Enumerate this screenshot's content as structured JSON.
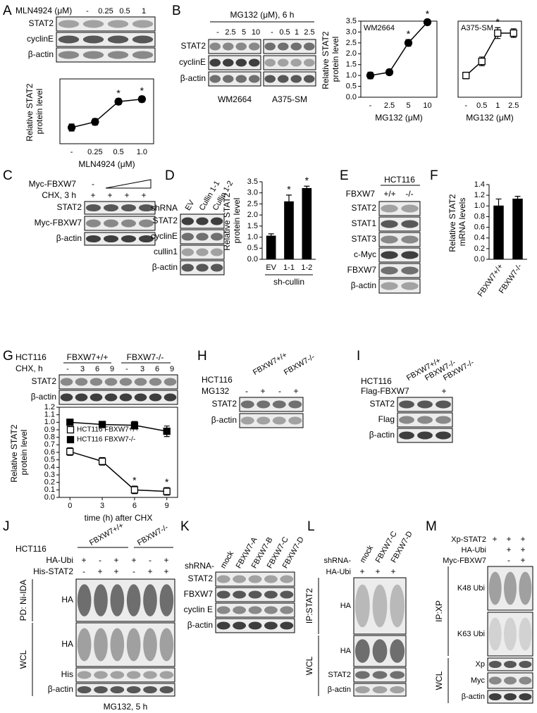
{
  "chart_data": [
    {
      "type": "line",
      "categories": [
        "-",
        "0.25",
        "0.5",
        "1.0"
      ],
      "values": [
        1.0,
        1.35,
        2.6,
        2.75
      ],
      "errors": [
        0.22,
        0.2,
        0.18,
        0.18
      ],
      "ylim": [
        0,
        4
      ],
      "y_label": "Relative STAT2 protein level",
      "x_label": "MLN4924 (μM)",
      "color": "#000000",
      "marker": "circle",
      "annotations": [
        {
          "text": "*",
          "x": "0.5"
        },
        {
          "text": "*",
          "x": "1.0"
        }
      ]
    },
    {
      "type": "line",
      "title": "WM2664",
      "categories": [
        "-",
        "2.5",
        "5",
        "10"
      ],
      "values": [
        1.0,
        1.15,
        2.5,
        3.45
      ],
      "errors": [
        0.15,
        0.12,
        0.15,
        0.12
      ],
      "ylim": [
        0,
        3.5
      ],
      "yticks": [
        {
          "value": 0,
          "label": "0.0"
        },
        0.5,
        {
          "value": 1,
          "label": "1.0"
        },
        1.5,
        {
          "value": 2,
          "label": "2.0"
        },
        2.5,
        {
          "value": 3,
          "label": "3.0"
        },
        3.5
      ],
      "y_label": "Relative STAT2 protein level",
      "x_label": "MG132 (μM)",
      "color": "#000000",
      "marker": "circle",
      "annotations": [
        {
          "text": "*",
          "x": "5"
        },
        {
          "text": "*",
          "x": "10"
        }
      ]
    },
    {
      "type": "line",
      "title": "A375-SM",
      "categories": [
        "-",
        "0.5",
        "1",
        "2.5"
      ],
      "values": [
        1.0,
        1.65,
        2.95,
        2.95
      ],
      "errors": [
        0.15,
        0.2,
        0.25,
        0.2
      ],
      "ylim": [
        0,
        3.5
      ],
      "x_label": "MG132 (μM)",
      "color": "#ffffff",
      "marker": "square",
      "annotations": [
        {
          "text": "*",
          "x": "1"
        }
      ]
    },
    {
      "type": "bar",
      "categories": [
        "EV",
        "1-1",
        "1-2"
      ],
      "values": [
        1.05,
        2.6,
        3.2
      ],
      "errors": [
        0.1,
        0.3,
        0.1
      ],
      "ylim": [
        0,
        3.5
      ],
      "yticks": [
        {
          "value": 0,
          "label": "0.0"
        },
        0.5,
        {
          "value": 1,
          "label": "1.0"
        },
        1.5,
        {
          "value": 2,
          "label": "2.0"
        },
        2.5,
        {
          "value": 3,
          "label": "3.0"
        },
        3.5
      ],
      "y_label": "Relative STAT2 protein level",
      "group_label": "sh-cullin",
      "color": "#000000",
      "annotations": [
        {
          "text": "*",
          "x": "1-1"
        },
        {
          "text": "*",
          "x": "1-2"
        }
      ]
    },
    {
      "type": "bar",
      "categories": [
        "FBXW7+/+",
        "FBXW7-/-"
      ],
      "values": [
        1.0,
        1.13
      ],
      "errors": [
        0.13,
        0.05
      ],
      "ylim": [
        0,
        1.4
      ],
      "yticks": [
        {
          "value": 0,
          "label": "0.0"
        },
        0.2,
        0.4,
        0.6,
        0.8,
        {
          "value": 1,
          "label": "1.0"
        },
        1.2,
        1.4
      ],
      "y_label": "Relative STAT2 mRNA levels",
      "color": "#000000"
    },
    {
      "type": "line",
      "x": [
        0,
        3,
        6,
        9
      ],
      "xlim": [
        -1,
        10
      ],
      "xticks": [
        0,
        3,
        6,
        9
      ],
      "ylim": [
        0,
        1.2
      ],
      "yticks": [
        {
          "value": 0,
          "label": "0.0"
        },
        0.1,
        0.2,
        0.3,
        0.4,
        0.5,
        0.6,
        0.7,
        0.8,
        0.9,
        {
          "value": 1,
          "label": "1.0"
        },
        1.1,
        1.2
      ],
      "x_label": "time (h) after CHX",
      "y_label": "Relative STAT2 protein level",
      "legend": "center-left",
      "series": [
        {
          "name": "HCT116 FBXW7+/+",
          "color": "#ffffff",
          "marker": "square",
          "values": [
            0.61,
            0.48,
            0.1,
            0.08
          ],
          "errors": [
            0.05,
            0.05,
            0.05,
            0.05
          ]
        },
        {
          "name": "HCT116 FBXW7-/-",
          "color": "#000000",
          "marker": "square",
          "values": [
            1.0,
            0.97,
            0.96,
            0.88
          ],
          "errors": [
            0.04,
            0.03,
            0.05,
            0.07
          ]
        }
      ],
      "annotations": [
        {
          "text": "*",
          "x": 6
        },
        {
          "text": "*",
          "x": 9
        }
      ]
    }
  ],
  "panels": {
    "A": {
      "letter": "A",
      "treatment": "MLN4924 (μM)",
      "lanes": [
        "-",
        "0.25",
        "0.5",
        "1"
      ],
      "rows": [
        "STAT2",
        "cyclinE",
        "β-actin"
      ]
    },
    "B": {
      "letter": "B",
      "treatment": "MG132 (μM), 6 h",
      "lanes": [
        "-",
        "2.5",
        "5",
        "10",
        "-",
        "0.5",
        "1",
        "2.5"
      ],
      "rows": [
        "STAT2",
        "cyclinE",
        "β-actin"
      ],
      "cells": [
        "WM2664",
        "A375-SM"
      ]
    },
    "C": {
      "letter": "C",
      "myc": "Myc-FBXW7",
      "myc_lane": "-",
      "chx": "CHX, 3 h",
      "chx_lanes": [
        "+",
        "+",
        "+",
        "+"
      ],
      "rows": [
        "STAT2",
        "Myc-FBXW7",
        "β-actin"
      ]
    },
    "D": {
      "letter": "D",
      "shrna": "shRNA",
      "lanes": [
        "EV",
        "Cullin 1-1",
        "Cullin 1-2"
      ],
      "rows": [
        "STAT2",
        "cyclinE",
        "cullin1",
        "β-actin"
      ]
    },
    "E": {
      "letter": "E",
      "cell": "HCT116",
      "fbxw7": "FBXW7",
      "lanes": [
        "+/+",
        "-/-"
      ],
      "rows": [
        "STAT2",
        "STAT1",
        "STAT3",
        "c-Myc",
        "FBXW7",
        "β-actin"
      ]
    },
    "F": {
      "letter": "F"
    },
    "G": {
      "letter": "G",
      "cell": "HCT116",
      "groups": [
        "FBXW7+/+",
        "FBXW7-/-"
      ],
      "chx": "CHX, h",
      "lanes": [
        "-",
        "3",
        "6",
        "9",
        "-",
        "3",
        "6",
        "9"
      ],
      "rows": [
        "STAT2",
        "β-actin"
      ]
    },
    "H": {
      "letter": "H",
      "cell": "HCT116",
      "groups": [
        "FBXW7+/+",
        "FBXW7-/-"
      ],
      "mg132": "MG132",
      "lanes": [
        "-",
        "+",
        "-",
        "+"
      ],
      "rows": [
        "STAT2",
        "β-actin"
      ]
    },
    "I": {
      "letter": "I",
      "cell": "HCT116",
      "groups": [
        "FBXW7+/+",
        "FBXW7-/-",
        "FBXW7-/-"
      ],
      "flag": "Flag-FBXW7",
      "flag_lanes": [
        "+"
      ],
      "rows": [
        "STAT2",
        "Flag",
        "β-actin"
      ]
    },
    "J": {
      "letter": "J",
      "cell": "HCT116",
      "groups": [
        "FBXW7+/+",
        "FBXW7-/-"
      ],
      "treatments": [
        "HA-Ubi",
        "His-STAT2"
      ],
      "signs": [
        [
          "+",
          "-",
          "+",
          "+",
          "-",
          "+"
        ],
        [
          "-",
          "+",
          "+",
          "-",
          "+",
          "+"
        ]
      ],
      "sections": [
        "PD: Ni-IDA",
        "WCL"
      ],
      "rows": [
        "HA",
        "HA",
        "His",
        "β-actin"
      ],
      "footer": "MG132, 5 h"
    },
    "K": {
      "letter": "K",
      "shrna": "shRNA-",
      "lanes": [
        "mock",
        "FBXW7-A",
        "FBXW7-B",
        "FBXW7-C",
        "FBXW7-D"
      ],
      "rows": [
        "STAT2",
        "FBXW7",
        "cyclin E",
        "β-actin"
      ]
    },
    "L": {
      "letter": "L",
      "treatments": [
        "shRNA-",
        "HA-Ubi"
      ],
      "lanes": [
        "mock",
        "FBXW7-C",
        "FBXW7-D"
      ],
      "signs": [
        "+",
        "+",
        "+"
      ],
      "sections": [
        "IP:STAT2",
        "WCL"
      ],
      "rows": [
        "HA",
        "HA",
        "STAT2",
        "β-actin"
      ]
    },
    "M": {
      "letter": "M",
      "treatments": [
        "Xp-STAT2",
        "HA-Ubi",
        "Myc-FBXW7"
      ],
      "signs": [
        [
          "+",
          "+",
          "+"
        ],
        [
          "+",
          "+"
        ],
        [
          "-",
          "+"
        ]
      ],
      "sections": [
        "IP:XP",
        "WCL"
      ],
      "rows": [
        "K48 Ubi",
        "K63 Ubi",
        "Xp",
        "Myc",
        "β-actin"
      ]
    }
  }
}
